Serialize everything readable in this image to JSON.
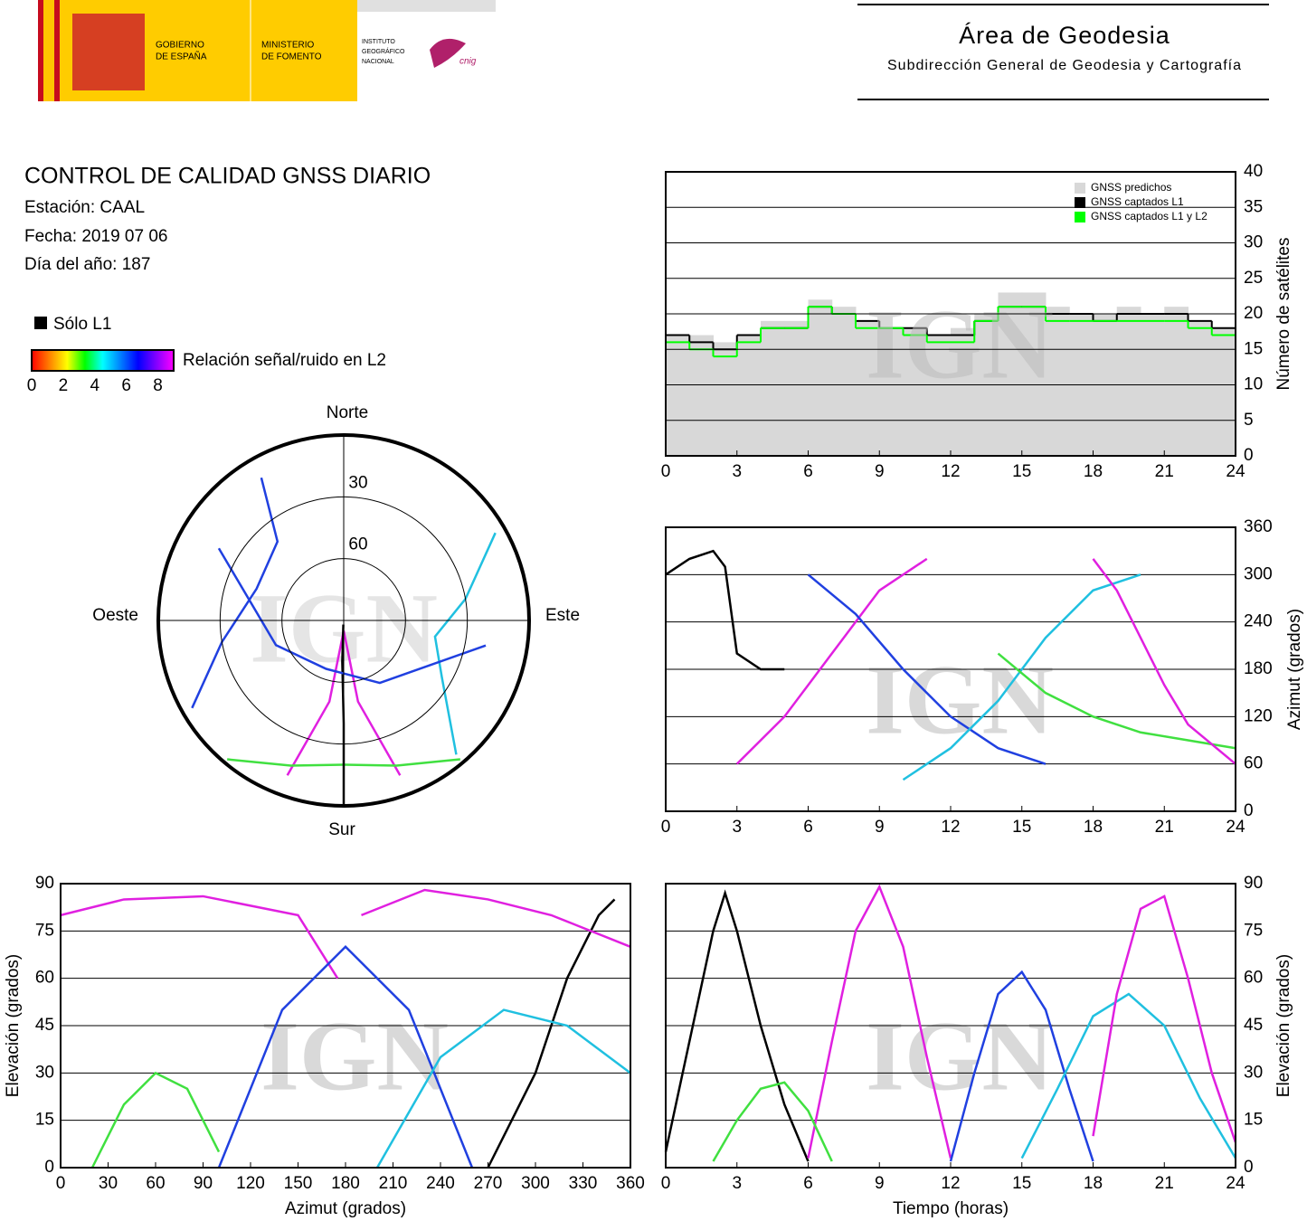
{
  "header": {
    "gobierno": [
      "GOBIERNO",
      "DE ESPAÑA"
    ],
    "ministerio": [
      "MINISTERIO",
      "DE FOMENTO"
    ],
    "instituto": [
      "INSTITUTO",
      "GEOGRÁFICO",
      "NACIONAL"
    ],
    "cnig": "cnig",
    "area_title": "Área de Geodesia",
    "area_subtitle": "Subdirección General de Geodesia y Cartografía"
  },
  "info": {
    "title": "CONTROL DE CALIDAD GNSS DIARIO",
    "station": "Estación: CAAL",
    "date": "Fecha: 2019 07 06",
    "doy": "Día del año: 187",
    "l1_only": "Sólo L1",
    "l1_color": "#000000",
    "colorbar": {
      "label": "Relación señal/ruido en L2",
      "clim": [
        0,
        9
      ],
      "ticks": [
        0,
        2,
        4,
        6,
        8
      ],
      "colors": [
        "#ff0000",
        "#ff8000",
        "#ffff00",
        "#00ff00",
        "#00ffff",
        "#0080ff",
        "#0000ff",
        "#8000ff",
        "#ff00ff"
      ]
    }
  },
  "chart_data": [
    {
      "type": "polar",
      "watermark": "IGN",
      "directions": {
        "north": "Norte",
        "south": "Sur",
        "west": "Oeste",
        "east": "Este"
      },
      "rlim": [
        90,
        0
      ],
      "rticks": [
        30,
        60
      ],
      "series": [
        {
          "color": "#e020e0",
          "x": [
            200,
            190,
            180,
            170,
            160
          ],
          "values": [
            10,
            50,
            85,
            50,
            10
          ]
        },
        {
          "color": "#2040e0",
          "x": [
            240,
            260,
            290,
            320,
            330
          ],
          "values": [
            5,
            30,
            45,
            40,
            10
          ]
        },
        {
          "color": "#20c0e0",
          "x": [
            60,
            80,
            100,
            120,
            140
          ],
          "values": [
            5,
            30,
            45,
            35,
            5
          ]
        },
        {
          "color": "#40e040",
          "x": [
            140,
            160,
            180,
            200,
            220
          ],
          "values": [
            2,
            15,
            20,
            15,
            2
          ]
        },
        {
          "color": "#000000",
          "x": [
            180,
            180,
            182,
            185
          ],
          "values": [
            0,
            40,
            70,
            88
          ]
        },
        {
          "color": "#2040e0",
          "x": [
            300,
            250,
            200,
            150,
            100
          ],
          "values": [
            20,
            55,
            65,
            55,
            20
          ]
        }
      ]
    },
    {
      "type": "step",
      "watermark": "IGN",
      "ylabel": "Número de satélites",
      "grid": true,
      "legend": "upper right",
      "xlim": [
        0,
        24
      ],
      "xticks": [
        0,
        3,
        6,
        9,
        12,
        15,
        18,
        21,
        24
      ],
      "ylim": [
        0,
        40
      ],
      "yticks": [
        0,
        5,
        10,
        15,
        20,
        25,
        30,
        35,
        40
      ],
      "x": [
        0,
        1,
        2,
        3,
        4,
        5,
        6,
        7,
        8,
        9,
        10,
        11,
        12,
        13,
        14,
        15,
        16,
        17,
        18,
        19,
        20,
        21,
        22,
        23
      ],
      "series": [
        {
          "name": "GNSS predichos",
          "color": "#d8d8d8",
          "kind": "area",
          "values": [
            17,
            17,
            16,
            17,
            19,
            19,
            22,
            21,
            19,
            18,
            18,
            17,
            18,
            20,
            23,
            23,
            21,
            20,
            20,
            21,
            20,
            21,
            19,
            18
          ]
        },
        {
          "name": "GNSS captados L1",
          "color": "#000000",
          "kind": "line",
          "values": [
            17,
            16,
            15,
            17,
            18,
            18,
            21,
            20,
            19,
            18,
            18,
            17,
            17,
            19,
            21,
            21,
            20,
            20,
            19,
            20,
            20,
            20,
            19,
            18
          ]
        },
        {
          "name": "GNSS captados L1 y L2",
          "color": "#00ff00",
          "kind": "line",
          "values": [
            16,
            15,
            14,
            16,
            18,
            18,
            21,
            20,
            18,
            18,
            17,
            16,
            16,
            19,
            21,
            21,
            19,
            19,
            19,
            19,
            19,
            19,
            18,
            17
          ]
        }
      ]
    },
    {
      "type": "line",
      "watermark": "IGN",
      "ylabel": "Azimut (grados)",
      "grid": true,
      "xlim": [
        0,
        24
      ],
      "xticks": [
        0,
        3,
        6,
        9,
        12,
        15,
        18,
        21,
        24
      ],
      "ylim": [
        0,
        360
      ],
      "yticks": [
        0,
        60,
        120,
        180,
        240,
        300,
        360
      ],
      "series": [
        {
          "color": "#000000",
          "x": [
            0,
            1,
            2,
            2.5,
            3,
            4,
            5
          ],
          "values": [
            300,
            320,
            330,
            310,
            200,
            180,
            180
          ]
        },
        {
          "color": "#e020e0",
          "x": [
            3,
            5,
            7,
            9,
            11
          ],
          "values": [
            60,
            120,
            200,
            280,
            320
          ]
        },
        {
          "color": "#2040e0",
          "x": [
            6,
            8,
            10,
            12,
            14,
            16
          ],
          "values": [
            300,
            250,
            180,
            120,
            80,
            60
          ]
        },
        {
          "color": "#20c0e0",
          "x": [
            10,
            12,
            14,
            16,
            18,
            20
          ],
          "values": [
            40,
            80,
            140,
            220,
            280,
            300
          ]
        },
        {
          "color": "#40e040",
          "x": [
            14,
            16,
            18,
            20,
            22,
            24
          ],
          "values": [
            200,
            150,
            120,
            100,
            90,
            80
          ]
        },
        {
          "color": "#e020e0",
          "x": [
            18,
            19,
            20,
            21,
            22,
            24
          ],
          "values": [
            320,
            280,
            220,
            160,
            110,
            60
          ]
        }
      ]
    },
    {
      "type": "line",
      "watermark": "IGN",
      "xlabel": "Azimut (grados)",
      "ylabel": "Elevación (grados)",
      "grid": true,
      "xlim": [
        0,
        360
      ],
      "xticks": [
        0,
        30,
        60,
        90,
        120,
        150,
        180,
        210,
        240,
        270,
        300,
        330,
        360
      ],
      "ylim": [
        0,
        90
      ],
      "yticks": [
        0,
        15,
        30,
        45,
        60,
        75,
        90
      ],
      "series": [
        {
          "color": "#000000",
          "x": [
            270,
            300,
            320,
            340,
            350
          ],
          "values": [
            0,
            30,
            60,
            80,
            85
          ]
        },
        {
          "color": "#e020e0",
          "x": [
            0,
            40,
            90,
            150,
            175
          ],
          "values": [
            80,
            85,
            86,
            80,
            60
          ]
        },
        {
          "color": "#2040e0",
          "x": [
            100,
            140,
            180,
            220,
            260
          ],
          "values": [
            0,
            50,
            70,
            50,
            0
          ]
        },
        {
          "color": "#20c0e0",
          "x": [
            200,
            240,
            280,
            320,
            360
          ],
          "values": [
            0,
            35,
            50,
            45,
            30
          ]
        },
        {
          "color": "#40e040",
          "x": [
            20,
            40,
            60,
            80,
            100
          ],
          "values": [
            0,
            20,
            30,
            25,
            5
          ]
        },
        {
          "color": "#e020e0",
          "x": [
            190,
            230,
            270,
            310,
            360
          ],
          "values": [
            80,
            88,
            85,
            80,
            70
          ]
        }
      ]
    },
    {
      "type": "line",
      "watermark": "IGN",
      "xlabel": "Tiempo (horas)",
      "ylabel": "Elevación (grados)",
      "grid": true,
      "xlim": [
        0,
        24
      ],
      "xticks": [
        0,
        3,
        6,
        9,
        12,
        15,
        18,
        21,
        24
      ],
      "ylim": [
        0,
        90
      ],
      "yticks": [
        0,
        15,
        30,
        45,
        60,
        75,
        90
      ],
      "series": [
        {
          "color": "#000000",
          "x": [
            0,
            1,
            2,
            2.5,
            3,
            4,
            5,
            6
          ],
          "values": [
            5,
            40,
            75,
            87,
            75,
            45,
            20,
            2
          ]
        },
        {
          "color": "#e020e0",
          "x": [
            6,
            7,
            8,
            9,
            10,
            11,
            12
          ],
          "values": [
            3,
            40,
            75,
            89,
            70,
            35,
            3
          ]
        },
        {
          "color": "#2040e0",
          "x": [
            12,
            13,
            14,
            15,
            16,
            17,
            18
          ],
          "values": [
            2,
            30,
            55,
            62,
            50,
            25,
            2
          ]
        },
        {
          "color": "#20c0e0",
          "x": [
            15,
            16.5,
            18,
            19.5,
            21,
            22.5,
            24
          ],
          "values": [
            3,
            25,
            48,
            55,
            45,
            22,
            3
          ]
        },
        {
          "color": "#40e040",
          "x": [
            2,
            3,
            4,
            5,
            6,
            7
          ],
          "values": [
            2,
            15,
            25,
            27,
            18,
            2
          ]
        },
        {
          "color": "#e020e0",
          "x": [
            18,
            19,
            20,
            21,
            22,
            23,
            24
          ],
          "values": [
            10,
            55,
            82,
            86,
            60,
            30,
            8
          ]
        }
      ]
    }
  ]
}
